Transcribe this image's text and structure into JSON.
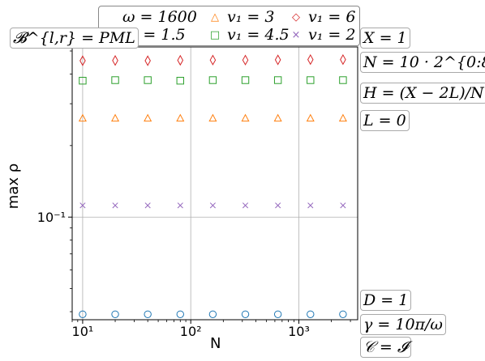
{
  "chart_data": {
    "type": "scatter",
    "xscale": "log",
    "yscale": "log",
    "xlabel": "N",
    "ylabel": "max ρ",
    "xlim": [
      8,
      3500
    ],
    "ylim": [
      0.037,
      0.52
    ],
    "grid": true,
    "x_ticks": [
      {
        "value": 10,
        "label": "10¹"
      },
      {
        "value": 100,
        "label": "10²"
      },
      {
        "value": 1000,
        "label": "10³"
      }
    ],
    "y_ticks": [
      {
        "value": 0.1,
        "label": "10⁻¹"
      }
    ],
    "legend_title": "ω = 1600",
    "legend_position": "top",
    "x": [
      10,
      20,
      40,
      80,
      160,
      320,
      640,
      1280,
      2560
    ],
    "series": [
      {
        "name": "v₁ = 1.5",
        "marker": "circle",
        "color": "#1f77b4",
        "values": [
          0.039,
          0.039,
          0.039,
          0.039,
          0.039,
          0.039,
          0.039,
          0.039,
          0.039
        ]
      },
      {
        "name": "v₁ = 3",
        "marker": "triangle",
        "color": "#ff7f0e",
        "values": [
          0.26,
          0.26,
          0.26,
          0.26,
          0.26,
          0.26,
          0.26,
          0.26,
          0.26
        ]
      },
      {
        "name": "v₁ = 4.5",
        "marker": "square",
        "color": "#2ca02c",
        "values": [
          0.375,
          0.377,
          0.377,
          0.375,
          0.377,
          0.377,
          0.377,
          0.377,
          0.377
        ]
      },
      {
        "name": "v₁ = 6",
        "marker": "diamond",
        "color": "#d62728",
        "values": [
          0.455,
          0.456,
          0.455,
          0.457,
          0.458,
          0.458,
          0.459,
          0.46,
          0.46
        ]
      },
      {
        "name": "v₁ = 2",
        "marker": "x",
        "color": "#9467bd",
        "values": [
          0.112,
          0.112,
          0.112,
          0.112,
          0.112,
          0.112,
          0.112,
          0.112,
          0.112
        ]
      }
    ],
    "annotations": {
      "boundary": "𝓑^{l,r} = PML",
      "x_domain": "X = 1",
      "n_def": "N = 10 · 2^{0:8}",
      "h_def": "H = (X − 2L)/N",
      "l_def": "L = 0",
      "d_def": "D = 1",
      "gamma_def": "γ = 10π/ω",
      "c_def": "𝒞 = 𝓘"
    }
  }
}
